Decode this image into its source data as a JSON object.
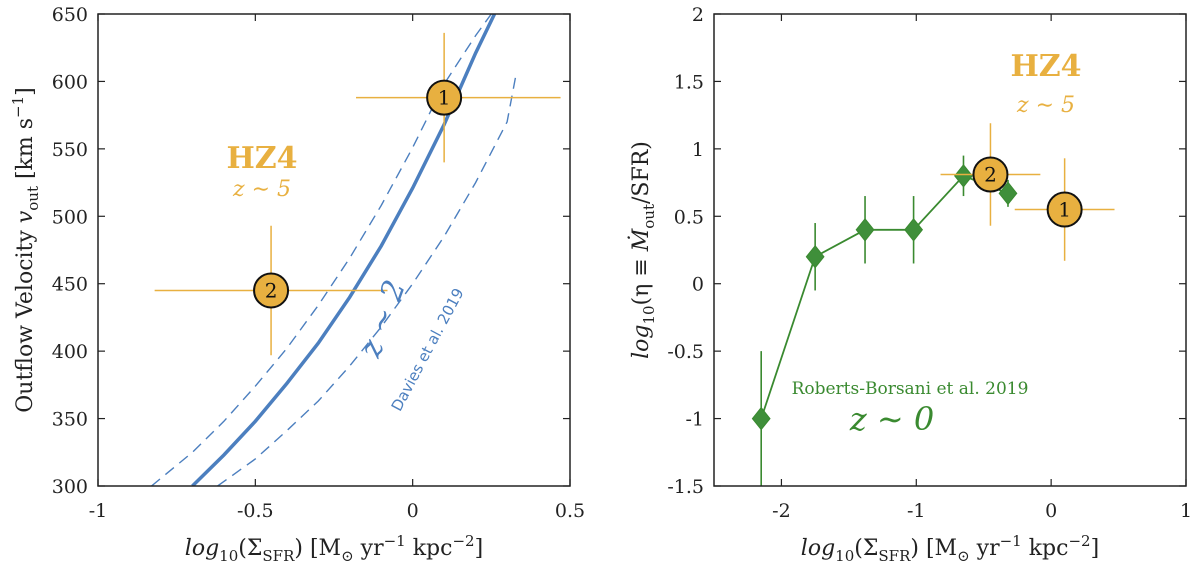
{
  "colors": {
    "hz4": "#E8B040",
    "blue": "#4C7FBF",
    "green": "#3A8A30",
    "green_marker": "#3F8F3A",
    "axis": "#222222"
  },
  "chart_data": [
    {
      "type": "line",
      "panel": "left",
      "xlim": [
        -1,
        0.5
      ],
      "ylim": [
        300,
        650
      ],
      "xticks": [
        -1,
        -0.5,
        0,
        0.5
      ],
      "xtick_labels": [
        "-1",
        "-0.5",
        "0",
        "0.5"
      ],
      "yticks": [
        300,
        350,
        400,
        450,
        500,
        550,
        600,
        650
      ],
      "ytick_labels": [
        "300",
        "350",
        "400",
        "450",
        "500",
        "550",
        "600",
        "650"
      ],
      "xlabel": {
        "main": "log",
        "sub": "10",
        "rest": "(Σ",
        "sub2": "SFR",
        "units": ") [M",
        "sun": "⊙",
        "units2": " yr",
        "exp1": "−1",
        "units3": " kpc",
        "exp2": "−2",
        "close": "]"
      },
      "ylabel": {
        "main": "Outflow Velocity ",
        "var": "v",
        "sub": "out",
        "units": " [km s",
        "exp": "−1",
        "close": "]"
      },
      "fit": {
        "name": "z ~ 2 (Davies et al. 2019)",
        "x": [
          -0.7,
          -0.6,
          -0.5,
          -0.4,
          -0.3,
          -0.2,
          -0.1,
          0.0,
          0.1,
          0.2,
          0.26
        ],
        "y": [
          300,
          323,
          348,
          376,
          406,
          440,
          478,
          521,
          568,
          621,
          650
        ],
        "upper_x": [
          -0.83,
          -0.7,
          -0.6,
          -0.5,
          -0.4,
          -0.3,
          -0.2,
          -0.1,
          0.0,
          0.1,
          0.2,
          0.25
        ],
        "upper_y": [
          300,
          325,
          348,
          374,
          402,
          434,
          469,
          508,
          551,
          598,
          634,
          650
        ],
        "lower_x": [
          -0.62,
          -0.5,
          -0.4,
          -0.3,
          -0.2,
          -0.1,
          0.0,
          0.1,
          0.2,
          0.3,
          0.33
        ],
        "lower_y": [
          300,
          320,
          341,
          363,
          389,
          418,
          450,
          485,
          525,
          570,
          607
        ]
      },
      "points": [
        {
          "label": "1",
          "x": 0.1,
          "y": 588,
          "xerr": [
            0.28,
            0.37
          ],
          "yerr": [
            48,
            48
          ]
        },
        {
          "label": "2",
          "x": -0.45,
          "y": 445,
          "xerr": [
            0.37,
            0.37
          ],
          "yerr": [
            48,
            48
          ]
        }
      ],
      "annotations": {
        "hz4": "HZ4",
        "z5": "z ∼ 5",
        "z2": "z ∼ 2",
        "davies": "Davies et al. 2019"
      }
    },
    {
      "type": "line",
      "panel": "right",
      "xlim": [
        -2.5,
        1
      ],
      "ylim": [
        -1.5,
        2
      ],
      "xticks": [
        -2,
        -1,
        0,
        1
      ],
      "xtick_labels": [
        "-2",
        "-1",
        "0",
        "1"
      ],
      "yticks": [
        -1.5,
        -1,
        -0.5,
        0,
        0.5,
        1,
        1.5,
        2
      ],
      "ytick_labels": [
        "-1.5",
        "-1",
        "-0.5",
        "0",
        "0.5",
        "1",
        "1.5",
        "2"
      ],
      "xlabel": {
        "main": "log",
        "sub": "10",
        "rest": "(Σ",
        "sub2": "SFR",
        "units": ") [M",
        "sun": "⊙",
        "units2": " yr",
        "exp1": "−1",
        "units3": " kpc",
        "exp2": "−2",
        "close": "]"
      },
      "ylabel": {
        "main": "log",
        "sub": "10",
        "rest": "(η ≡ ",
        "var": "Ṁ",
        "sub2": "out",
        "close": "/SFR)"
      },
      "series": [
        {
          "name": "Roberts-Borsani et al. 2019 (z ~ 0)",
          "x": [
            -2.15,
            -1.75,
            -1.38,
            -1.02,
            -0.65,
            -0.32
          ],
          "y": [
            -1.0,
            0.2,
            0.4,
            0.4,
            0.8,
            0.67
          ],
          "yerr": [
            0.5,
            0.25,
            0.25,
            0.25,
            0.15,
            0.1
          ]
        }
      ],
      "points": [
        {
          "label": "1",
          "x": 0.1,
          "y": 0.55,
          "xerr": [
            0.37,
            0.37
          ],
          "yerr": [
            0.38,
            0.38
          ]
        },
        {
          "label": "2",
          "x": -0.45,
          "y": 0.81,
          "xerr": [
            0.37,
            0.37
          ],
          "yerr": [
            0.38,
            0.38
          ]
        }
      ],
      "annotations": {
        "hz4": "HZ4",
        "z5": "z ∼ 5",
        "rb": "Roberts-Borsani et al. 2019",
        "z0": "z ∼ 0"
      }
    }
  ]
}
